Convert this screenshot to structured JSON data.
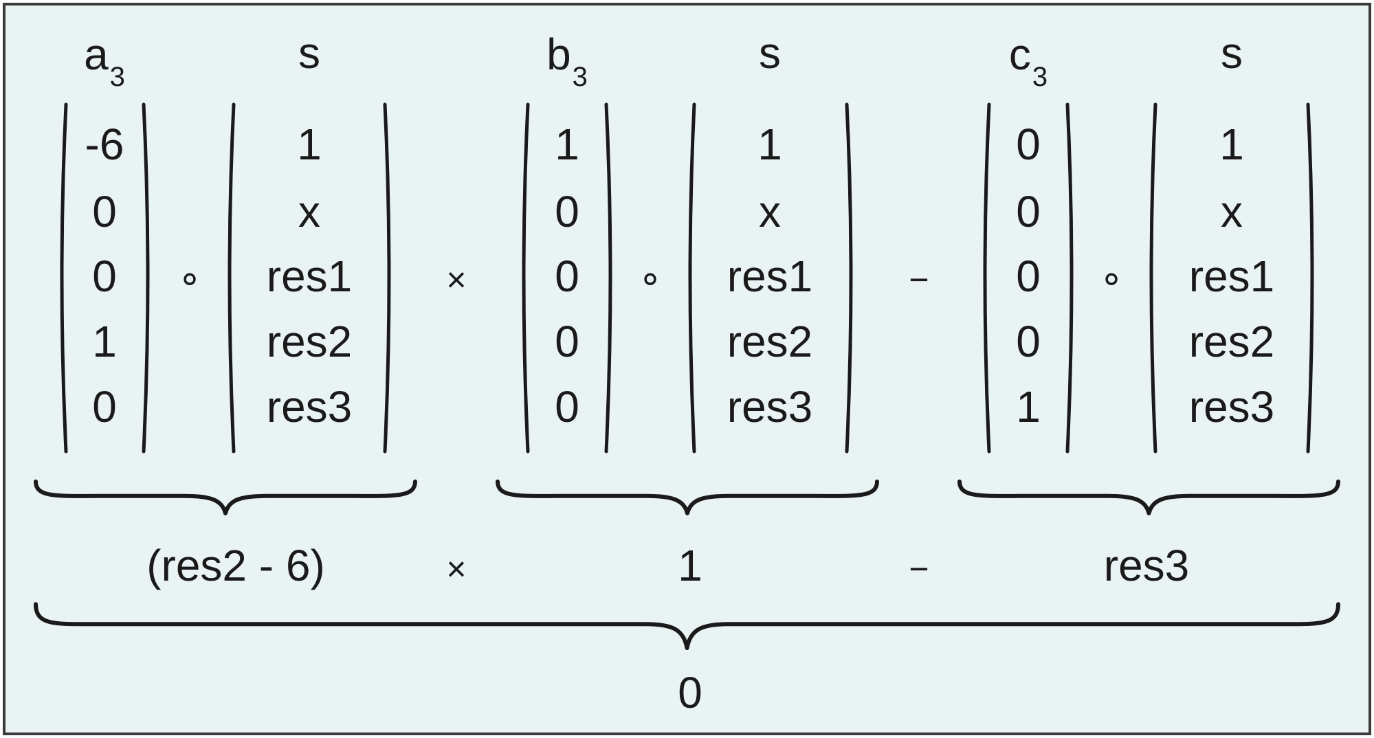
{
  "colors": {
    "background": "#eaf3f3",
    "ink": "#1a1a1a",
    "border": "#3a3a3a"
  },
  "vectors": [
    {
      "coef_symbol": "a",
      "coef_sub": "3",
      "coef_values": [
        "-6",
        "0",
        "0",
        "1",
        "0"
      ],
      "s_label": "s",
      "s_values": [
        "1",
        "x",
        "res1",
        "res2",
        "res3"
      ],
      "result": "(res2 - 6)"
    },
    {
      "coef_symbol": "b",
      "coef_sub": "3",
      "coef_values": [
        "1",
        "0",
        "0",
        "0",
        "0"
      ],
      "s_label": "s",
      "s_values": [
        "1",
        "x",
        "res1",
        "res2",
        "res3"
      ],
      "result": "1"
    },
    {
      "coef_symbol": "c",
      "coef_sub": "3",
      "coef_values": [
        "0",
        "0",
        "0",
        "0",
        "1"
      ],
      "s_label": "s",
      "s_values": [
        "1",
        "x",
        "res1",
        "res2",
        "res3"
      ],
      "result": "res3"
    }
  ],
  "dot_operator": "∘",
  "operators": [
    "×",
    "−"
  ],
  "final_result": "0"
}
